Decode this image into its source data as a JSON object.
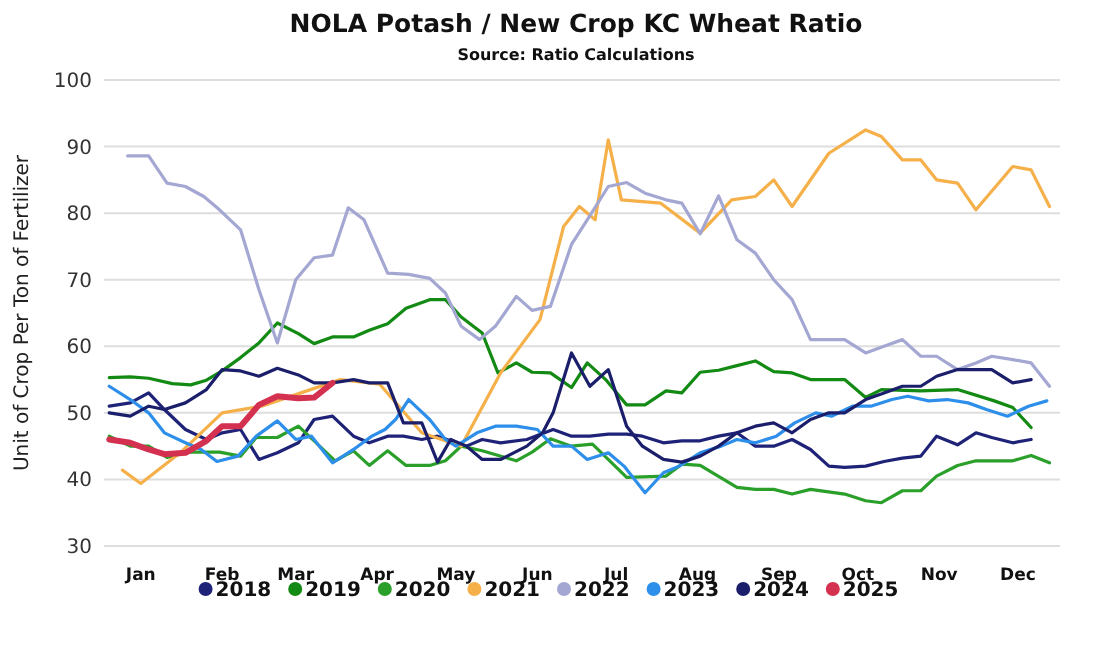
{
  "chart_data": {
    "type": "line",
    "title": "NOLA Potash / New Crop KC Wheat Ratio",
    "subtitle": "Source: Ratio Calculations",
    "ylabel": "Unit of Crop Per Ton of Fertilizer",
    "xlim": [
      "--01-01",
      "--12-31"
    ],
    "xticks": [
      {
        "value": "--01-15",
        "label": "Jan"
      },
      {
        "value": "--02-15",
        "label": "Feb"
      },
      {
        "value": "--03-15",
        "label": "Mar"
      },
      {
        "value": "--04-15",
        "label": "Apr"
      },
      {
        "value": "--05-15",
        "label": "May"
      },
      {
        "value": "--06-15",
        "label": "Jun"
      },
      {
        "value": "--07-15",
        "label": "Jul"
      },
      {
        "value": "--08-15",
        "label": "Aug"
      },
      {
        "value": "--09-15",
        "label": "Sep"
      },
      {
        "value": "--10-15",
        "label": "Oct"
      },
      {
        "value": "--11-15",
        "label": "Nov"
      },
      {
        "value": "--12-15",
        "label": "Dec"
      }
    ],
    "ylim": [
      30,
      100
    ],
    "yticks": [
      30,
      40,
      50,
      60,
      70,
      80,
      90,
      100
    ],
    "grid": "y",
    "legend": "bottom",
    "marker": "none",
    "line_style": "solid",
    "series": [
      {
        "name": "2018",
        "color": "#1f2378",
        "x": [
          "--01-03",
          "--01-11",
          "--01-18",
          "--01-24",
          "--02-01",
          "--02-09",
          "--02-15",
          "--02-22",
          "--03-01",
          "--03-08",
          "--03-16",
          "--03-22",
          "--03-29",
          "--04-06",
          "--04-12",
          "--04-19",
          "--04-25",
          "--05-02",
          "--05-08",
          "--05-19",
          "--05-25",
          "--06-01",
          "--06-11",
          "--06-21",
          "--06-28",
          "--07-05",
          "--07-12",
          "--07-19",
          "--07-25",
          "--08-02",
          "--08-09",
          "--08-16",
          "--08-23",
          "--08-30",
          "--09-06",
          "--09-13",
          "--09-20",
          "--09-27",
          "--10-04",
          "--10-10",
          "--10-18",
          "--10-25",
          "--11-01",
          "--11-08",
          "--11-14",
          "--11-22",
          "--11-29",
          "--12-05",
          "--12-13",
          "--12-20"
        ],
        "values": [
          51,
          51.5,
          53,
          50.5,
          47.5,
          46,
          47,
          47.5,
          43,
          44,
          45.5,
          49,
          49.5,
          46.5,
          45.5,
          46.5,
          46.5,
          46,
          46.5,
          45,
          46,
          45.5,
          46,
          47.5,
          46.5,
          46.5,
          46.8,
          46.8,
          46.5,
          45.5,
          45.8,
          45.8,
          46.5,
          47,
          45,
          45,
          46,
          44.5,
          42,
          41.8,
          42,
          42.7,
          43.2,
          43.5,
          46.5,
          45.2,
          47,
          46.3,
          45.5,
          46
        ]
      },
      {
        "name": "2019",
        "color": "#138a13",
        "x": [
          "--01-03",
          "--01-11",
          "--01-18",
          "--01-27",
          "--02-03",
          "--02-09",
          "--02-15",
          "--02-22",
          "--03-01",
          "--03-08",
          "--03-16",
          "--03-22",
          "--03-29",
          "--04-06",
          "--04-12",
          "--04-19",
          "--04-26",
          "--05-05",
          "--05-11",
          "--05-17",
          "--05-25",
          "--05-31",
          "--06-07",
          "--06-13",
          "--06-20",
          "--06-28",
          "--07-04",
          "--07-11",
          "--07-19",
          "--07-26",
          "--08-03",
          "--08-09",
          "--08-16",
          "--08-23",
          "--08-30",
          "--09-06",
          "--09-13",
          "--09-20",
          "--09-27",
          "--10-10",
          "--10-18",
          "--10-24",
          "--11-08",
          "--11-22",
          "--12-06",
          "--12-13",
          "--12-20"
        ],
        "values": [
          55.3,
          55.4,
          55.2,
          54.4,
          54.2,
          54.9,
          56.3,
          58.3,
          60.5,
          63.5,
          61.9,
          60.4,
          61.4,
          61.4,
          62.4,
          63.4,
          65.7,
          67,
          67,
          64.4,
          62,
          56,
          57.5,
          56.1,
          56,
          53.8,
          57.5,
          55,
          51.2,
          51.2,
          53.3,
          53,
          56.1,
          56.4,
          57.1,
          57.8,
          56.2,
          56,
          55,
          55,
          52.3,
          53.5,
          53.3,
          53.5,
          51.8,
          50.8,
          47.8
        ]
      },
      {
        "name": "2020",
        "color": "#2aa02a",
        "x": [
          "--01-03",
          "--01-11",
          "--01-18",
          "--01-25",
          "--02-02",
          "--02-14",
          "--02-22",
          "--02-28",
          "--03-08",
          "--03-16",
          "--03-22",
          "--03-30",
          "--04-06",
          "--04-12",
          "--04-19",
          "--04-26",
          "--05-05",
          "--05-11",
          "--05-17",
          "--05-25",
          "--06-07",
          "--06-13",
          "--06-20",
          "--06-28",
          "--07-06",
          "--07-19",
          "--08-03",
          "--08-09",
          "--08-16",
          "--08-30",
          "--09-06",
          "--09-13",
          "--09-20",
          "--09-27",
          "--10-10",
          "--10-18",
          "--10-24",
          "--11-01",
          "--11-08",
          "--11-14",
          "--11-22",
          "--11-29",
          "--12-13",
          "--12-20",
          "--12-27"
        ],
        "values": [
          46.5,
          45,
          45,
          43.3,
          44.1,
          44.1,
          43.5,
          46.3,
          46.3,
          48,
          45.8,
          42.8,
          44.3,
          42.1,
          44.3,
          42.1,
          42.1,
          42.8,
          45,
          44.3,
          42.8,
          44.1,
          46.1,
          45,
          45.3,
          40.3,
          40.5,
          42.3,
          42.1,
          38.8,
          38.5,
          38.5,
          37.8,
          38.5,
          37.8,
          36.8,
          36.5,
          38.3,
          38.3,
          40.5,
          42.1,
          42.8,
          42.8,
          43.6,
          42.5
        ]
      },
      {
        "name": "2021",
        "color": "#f5b04a",
        "x": [
          "--01-08",
          "--01-15",
          "--01-30",
          "--02-15",
          "--03-02",
          "--03-17",
          "--04-01",
          "--04-16",
          "--05-02",
          "--05-17",
          "--06-01",
          "--06-16",
          "--06-25",
          "--07-01",
          "--07-07",
          "--07-12",
          "--07-17",
          "--08-01",
          "--08-16",
          "--08-28",
          "--09-06",
          "--09-13",
          "--09-20",
          "--10-04",
          "--10-18",
          "--10-24",
          "--11-01",
          "--11-08",
          "--11-14",
          "--11-22",
          "--11-29",
          "--12-13",
          "--12-20",
          "--12-27"
        ],
        "values": [
          41.4,
          39.4,
          44,
          50,
          51,
          53,
          55,
          54.3,
          47,
          45,
          56,
          64,
          78,
          81,
          79,
          91,
          82,
          81.5,
          77,
          82,
          82.5,
          85,
          81,
          89,
          92.5,
          91.5,
          88,
          88,
          85,
          84.5,
          80.5,
          87,
          86.5,
          81
        ]
      },
      {
        "name": "2022",
        "color": "#a3a7d2",
        "x": [
          "--01-10",
          "--01-18",
          "--01-25",
          "--02-01",
          "--02-08",
          "--02-14",
          "--02-22",
          "--03-01",
          "--03-08",
          "--03-15",
          "--03-22",
          "--03-29",
          "--04-04",
          "--04-10",
          "--04-19",
          "--04-27",
          "--05-05",
          "--05-11",
          "--05-17",
          "--05-24",
          "--05-30",
          "--06-07",
          "--06-13",
          "--06-20",
          "--06-28",
          "--07-04",
          "--07-12",
          "--07-19",
          "--07-26",
          "--08-03",
          "--08-09",
          "--08-16",
          "--08-23",
          "--08-30",
          "--09-06",
          "--09-13",
          "--09-20",
          "--09-27",
          "--10-04",
          "--10-10",
          "--10-18",
          "--10-25",
          "--11-01",
          "--11-08",
          "--11-14",
          "--11-22",
          "--11-29",
          "--12-05",
          "--12-13",
          "--12-20",
          "--12-27"
        ],
        "values": [
          88.6,
          88.6,
          84.5,
          84,
          82.5,
          80.5,
          77.5,
          68.5,
          60.5,
          70,
          73.3,
          73.7,
          80.8,
          79,
          71,
          70.8,
          70.2,
          68,
          63,
          61,
          63,
          67.5,
          65.4,
          66,
          75.3,
          79,
          84,
          84.6,
          83,
          82,
          81.5,
          76.9,
          82.6,
          76,
          74,
          70,
          67,
          61,
          61,
          61,
          59,
          60,
          61,
          58.5,
          58.5,
          56.5,
          57.5,
          58.5,
          58,
          57.5,
          54
        ]
      },
      {
        "name": "2023",
        "color": "#2e8fea",
        "x": [
          "--01-03",
          "--01-11",
          "--01-18",
          "--01-24",
          "--02-01",
          "--02-07",
          "--02-13",
          "--02-21",
          "--02-28",
          "--03-08",
          "--03-15",
          "--03-21",
          "--03-29",
          "--04-06",
          "--04-13",
          "--04-18",
          "--04-22",
          "--04-27",
          "--05-05",
          "--05-11",
          "--05-15",
          "--05-23",
          "--05-30",
          "--06-07",
          "--06-15",
          "--06-21",
          "--06-28",
          "--07-04",
          "--07-12",
          "--07-18",
          "--07-26",
          "--08-02",
          "--08-08",
          "--08-16",
          "--08-24",
          "--08-30",
          "--09-06",
          "--09-14",
          "--09-21",
          "--09-29",
          "--10-05",
          "--10-13",
          "--10-20",
          "--10-28",
          "--11-03",
          "--11-11",
          "--11-18",
          "--11-26",
          "--12-03",
          "--12-11",
          "--12-19",
          "--12-26"
        ],
        "values": [
          54,
          52,
          50,
          47,
          45.5,
          44.5,
          42.7,
          43.5,
          46.5,
          48.8,
          46,
          46.5,
          42.5,
          44.5,
          46.5,
          47.5,
          49,
          52,
          49,
          46,
          45,
          47,
          48,
          48,
          47.5,
          45,
          45,
          43,
          44,
          42,
          38,
          41,
          42,
          44,
          45,
          46,
          45.5,
          46.5,
          48.5,
          50,
          49.5,
          51,
          51,
          52,
          52.5,
          51.8,
          52,
          51.5,
          50.5,
          49.5,
          51,
          51.8
        ]
      },
      {
        "name": "2024",
        "color": "#1b1f6b",
        "x": [
          "--01-03",
          "--01-11",
          "--01-18",
          "--01-24",
          "--02-01",
          "--02-09",
          "--02-15",
          "--02-22",
          "--03-01",
          "--03-08",
          "--03-16",
          "--03-22",
          "--03-29",
          "--04-06",
          "--04-12",
          "--04-19",
          "--04-25",
          "--05-02",
          "--05-08",
          "--05-13",
          "--05-19",
          "--05-25",
          "--06-01",
          "--06-11",
          "--06-17",
          "--06-21",
          "--06-28",
          "--07-05",
          "--07-12",
          "--07-19",
          "--07-25",
          "--08-02",
          "--08-09",
          "--08-16",
          "--08-23",
          "--08-30",
          "--09-06",
          "--09-13",
          "--09-20",
          "--09-27",
          "--10-04",
          "--10-10",
          "--10-18",
          "--10-25",
          "--11-01",
          "--11-08",
          "--11-14",
          "--11-22",
          "--12-05",
          "--12-13",
          "--12-20"
        ],
        "values": [
          50,
          49.5,
          51,
          50.5,
          51.5,
          53.5,
          56.5,
          56.3,
          55.5,
          56.7,
          55.7,
          54.5,
          54.5,
          55,
          54.5,
          54.5,
          48.5,
          48.5,
          42.6,
          46,
          45,
          43,
          43,
          45,
          47,
          50,
          59,
          54,
          56.5,
          48,
          45,
          43,
          42.6,
          43.5,
          45,
          47,
          48,
          48.5,
          47,
          49,
          50,
          50,
          52,
          53,
          54,
          54,
          55.5,
          56.5,
          56.5,
          54.5,
          55
        ]
      },
      {
        "name": "2025",
        "color": "#d4304f",
        "x": [
          "--01-03",
          "--01-11",
          "--01-18",
          "--01-24",
          "--02-01",
          "--02-09",
          "--02-15",
          "--02-22",
          "--03-01",
          "--03-08",
          "--03-16",
          "--03-22",
          "--03-29"
        ],
        "values": [
          46,
          45.5,
          44.5,
          43.8,
          44,
          45.8,
          48,
          48,
          51.2,
          52.5,
          52.2,
          52.3,
          54.5
        ]
      }
    ]
  }
}
